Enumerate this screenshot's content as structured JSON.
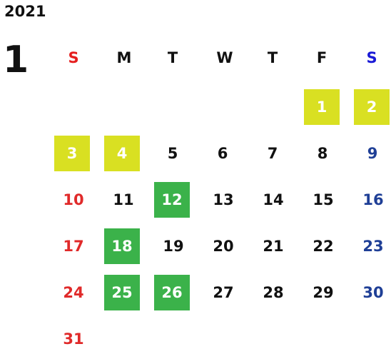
{
  "calendar": {
    "year": "2021",
    "month": "1",
    "weekdays": [
      "S",
      "M",
      "T",
      "W",
      "T",
      "F",
      "S"
    ],
    "days": {
      "d1": "1",
      "d2": "2",
      "d3": "3",
      "d4": "4",
      "d5": "5",
      "d6": "6",
      "d7": "7",
      "d8": "8",
      "d9": "9",
      "d10": "10",
      "d11": "11",
      "d12": "12",
      "d13": "13",
      "d14": "14",
      "d15": "15",
      "d16": "16",
      "d17": "17",
      "d18": "18",
      "d19": "19",
      "d20": "20",
      "d21": "21",
      "d22": "22",
      "d23": "23",
      "d24": "24",
      "d25": "25",
      "d26": "26",
      "d27": "27",
      "d28": "28",
      "d29": "29",
      "d30": "30",
      "d31": "31"
    },
    "colors": {
      "sunday": "#e02a2a",
      "saturday": "#1f3f96",
      "holiday_highlight": "#d9e022",
      "special_highlight": "#3bb24a"
    }
  }
}
